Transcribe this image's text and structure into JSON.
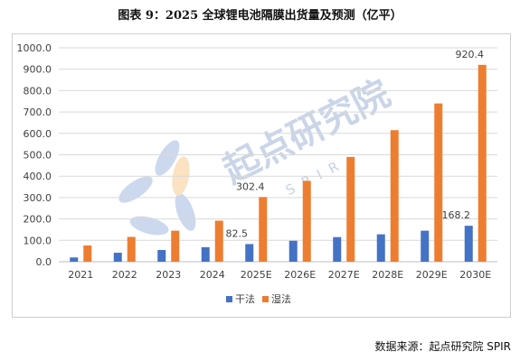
{
  "title": "图表 9：2025 全球锂电池隔膜出货量及预测（亿平）",
  "source": "数据来源：起点研究院 SPIR",
  "watermark": {
    "main": "起点研究院",
    "sub": "SPIR"
  },
  "colors": {
    "dry": "#4472C4",
    "wet": "#ED7D31",
    "grid": "#d9d9d9",
    "axis": "#bfbfbf",
    "watermark": "#9fb2d6"
  },
  "chart_data": {
    "type": "bar",
    "categories": [
      "2021",
      "2022",
      "2023",
      "2024",
      "2025E",
      "2026E",
      "2027E",
      "2028E",
      "2029E",
      "2030E"
    ],
    "series": [
      {
        "name": "干法",
        "values": [
          20,
          42,
          55,
          68,
          82.5,
          98,
          115,
          128,
          145,
          168.2
        ]
      },
      {
        "name": "湿法",
        "values": [
          76,
          116,
          145,
          192,
          302.4,
          378,
          490,
          615,
          740,
          920.4
        ]
      }
    ],
    "ylim": [
      0,
      1000
    ],
    "yticks": [
      "0.0",
      "100.0",
      "200.0",
      "300.0",
      "400.0",
      "500.0",
      "600.0",
      "700.0",
      "800.0",
      "900.0",
      "1000.0"
    ],
    "data_labels": [
      {
        "series": 0,
        "index": 4,
        "text": "82.5"
      },
      {
        "series": 1,
        "index": 4,
        "text": "302.4"
      },
      {
        "series": 0,
        "index": 9,
        "text": "168.2"
      },
      {
        "series": 1,
        "index": 9,
        "text": "920.4"
      }
    ],
    "grid": true,
    "legend": "bottom-center"
  }
}
